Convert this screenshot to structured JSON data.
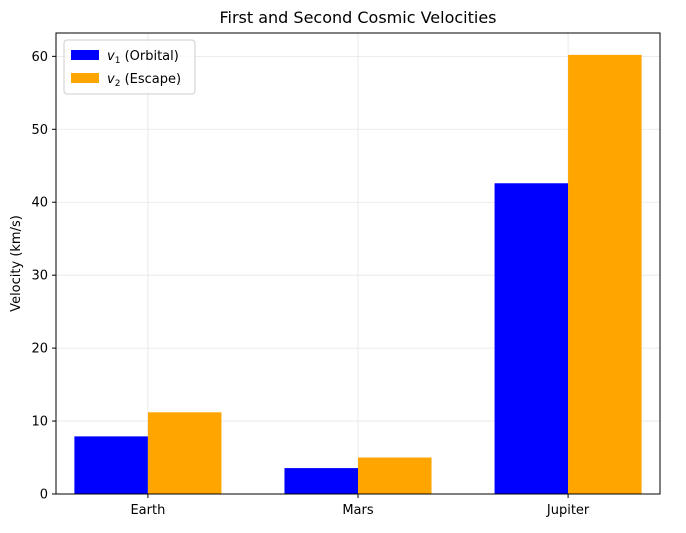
{
  "chart_data": {
    "type": "bar",
    "title": "First and Second Cosmic Velocities",
    "xlabel": "",
    "ylabel": "Velocity (km/s)",
    "categories": [
      "Earth",
      "Mars",
      "Jupiter"
    ],
    "series": [
      {
        "name": "v1 (Orbital)",
        "symbol": "v",
        "subscript": "1",
        "suffix": " (Orbital)",
        "color": "#0000ff",
        "values": [
          7.9,
          3.55,
          42.6
        ]
      },
      {
        "name": "v2 (Escape)",
        "symbol": "v",
        "subscript": "2",
        "suffix": " (Escape)",
        "color": "#ffa500",
        "values": [
          11.2,
          5.0,
          60.2
        ]
      }
    ],
    "ylim": [
      0,
      63.2
    ],
    "yticks": [
      0,
      10,
      20,
      30,
      40,
      50,
      60
    ],
    "grid": true,
    "legend_position": "top-left"
  }
}
